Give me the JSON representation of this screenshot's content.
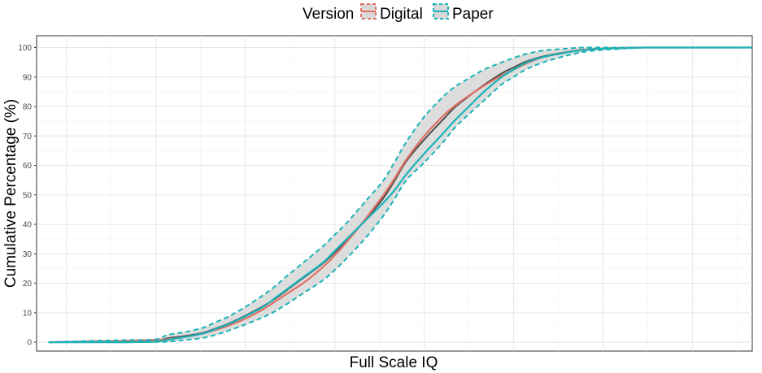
{
  "chart_data": {
    "type": "line",
    "title": "",
    "xlabel": "Full Scale IQ",
    "ylabel": "Cumulative Percentage (%)",
    "x_tick_labels": [],
    "xlim": [
      40,
      160
    ],
    "ylim": [
      -3,
      104
    ],
    "yticks": [
      0,
      10,
      20,
      30,
      40,
      50,
      60,
      70,
      80,
      90,
      100
    ],
    "grid": true,
    "legend": {
      "title": "Version",
      "position": "top",
      "entries": [
        "Digital",
        "Paper"
      ]
    },
    "colors": {
      "Digital": "#e07064",
      "Paper": "#1ab3b8",
      "band_fill": "#d9d9d9",
      "center_line": "#4d4d4d"
    },
    "x": [
      42,
      50,
      55,
      60,
      62,
      65,
      68,
      70,
      72,
      75,
      78,
      80,
      82,
      85,
      88,
      90,
      92,
      95,
      98,
      100,
      102,
      105,
      108,
      110,
      112,
      115,
      118,
      120,
      122,
      125,
      128,
      130,
      132,
      135,
      138,
      140,
      142,
      145,
      150,
      155,
      160
    ],
    "series": [
      {
        "name": "Digital",
        "values": [
          0,
          0.3,
          0.5,
          0.8,
          1.0,
          1.8,
          3.0,
          4.2,
          5.5,
          8.0,
          11.2,
          13.8,
          16.5,
          20.5,
          25.5,
          29.5,
          34.0,
          41.5,
          49.5,
          55.5,
          62.0,
          70.0,
          76.5,
          80.0,
          83.0,
          87.0,
          90.5,
          92.5,
          94.5,
          96.8,
          98.0,
          98.8,
          99.3,
          99.7,
          99.9,
          100,
          100,
          100,
          100,
          100,
          100
        ]
      },
      {
        "name": "Paper",
        "values": [
          0,
          0,
          0,
          0.2,
          0.8,
          1.8,
          3.0,
          4.5,
          6.0,
          8.8,
          12.0,
          15.0,
          18.0,
          22.5,
          27.0,
          31.0,
          35.0,
          41.0,
          47.0,
          51.5,
          57.0,
          64.0,
          70.5,
          75.0,
          79.0,
          85.0,
          90.0,
          92.5,
          94.8,
          96.8,
          98.0,
          98.7,
          99.2,
          99.6,
          99.8,
          99.9,
          100,
          100,
          100,
          100,
          100
        ]
      }
    ],
    "band": {
      "upper": [
        0,
        0.5,
        0.7,
        1.0,
        2.5,
        3.5,
        5.0,
        6.8,
        8.5,
        12.0,
        16.0,
        19.0,
        22.5,
        27.5,
        32.5,
        36.5,
        40.5,
        47.5,
        54.5,
        61.0,
        68.0,
        76.5,
        83.0,
        86.5,
        89.0,
        92.5,
        95.0,
        96.5,
        97.8,
        99.0,
        99.5,
        99.8,
        100,
        100,
        100,
        100,
        100,
        100,
        100,
        100,
        100
      ],
      "lower": [
        0,
        0,
        0,
        0.1,
        0.2,
        0.8,
        1.5,
        2.5,
        3.8,
        6.0,
        8.5,
        10.5,
        13.0,
        17.0,
        21.0,
        24.5,
        28.5,
        35.0,
        42.5,
        48.5,
        55.0,
        61.0,
        67.5,
        72.5,
        76.5,
        82.0,
        87.5,
        90.0,
        92.5,
        95.0,
        96.8,
        97.8,
        98.6,
        99.2,
        99.6,
        99.8,
        100,
        100,
        100,
        100,
        100
      ]
    }
  }
}
